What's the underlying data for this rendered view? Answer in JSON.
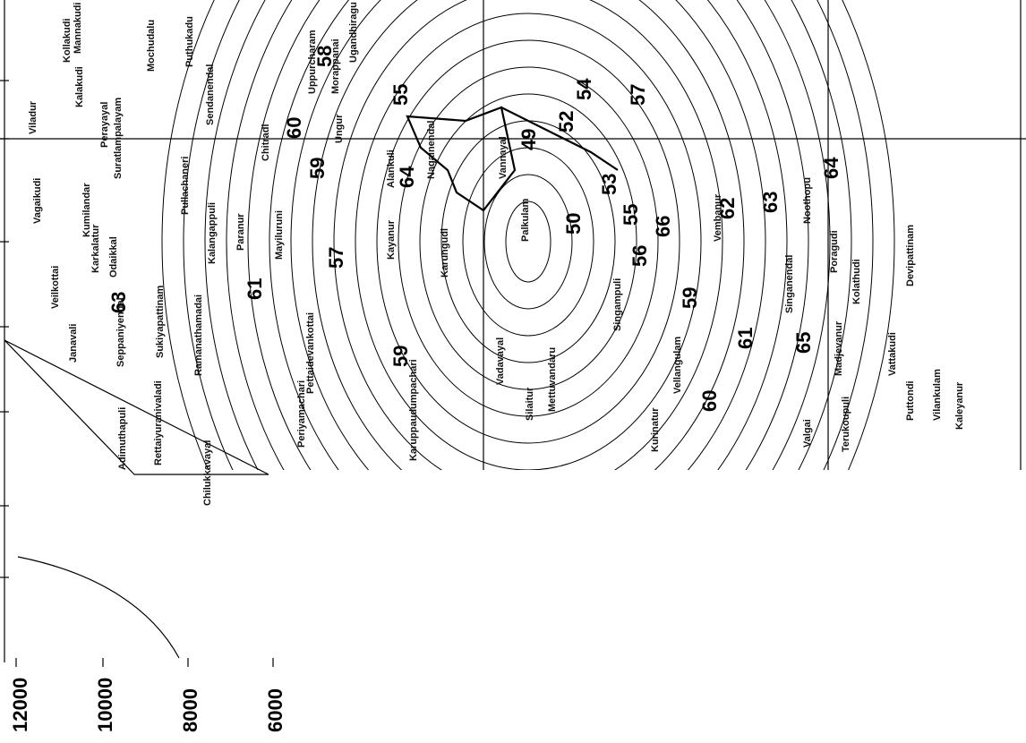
{
  "axis": {
    "ticks": [
      "12000",
      "10000",
      "8000",
      "6000"
    ]
  },
  "contour_labels": [
    "58",
    "55",
    "59",
    "57",
    "61",
    "63",
    "60",
    "64",
    "49",
    "52",
    "54",
    "57",
    "53",
    "50",
    "55",
    "56",
    "59",
    "61",
    "63",
    "64",
    "65",
    "66",
    "62",
    "59",
    "60"
  ],
  "places": [
    "Viladur",
    "Kollakudi",
    "Kalakudi",
    "Mannakudi",
    "Mochudalu",
    "Puthukadu",
    "Sendanendal",
    "Perayayal",
    "Vagaikudi",
    "Kumilandar",
    "Karkalatur",
    "Veilkottai",
    "Odaikkal",
    "Suratlampalayam",
    "Pullachaneri",
    "Kalangappuli",
    "Paranur",
    "Mayiluruni",
    "Chitradi",
    "Uppurcharam",
    "Morappanai",
    "Ugandhiragu",
    "Ungur",
    "Alankuli",
    "Kayanur",
    "Karungudi",
    "Palkulam",
    "Vannayal",
    "Nagalnendal",
    "Vembanur",
    "Singanendal",
    "Noothopu",
    "Poragudi",
    "Kolathudi",
    "Devipattinam",
    "Janavali",
    "Seppaniyendal",
    "Sukiyapattinam",
    "Ramanathamadai",
    "Adimuthapuli",
    "Rettaiyuranivaladi",
    "Chilukkavayal",
    "Pettaidevankottai",
    "Periyamachari",
    "Karuppaudumpachari",
    "Vadavayal",
    "Silaitur",
    "Mettuvandaru",
    "Singampuli",
    "Kurinatur",
    "Vellangulam",
    "Valgai",
    "Madjevanur",
    "Vattakudi",
    "Vilankulam",
    "Kaleyanur",
    "Puttondi",
    "Terukoupuli"
  ]
}
